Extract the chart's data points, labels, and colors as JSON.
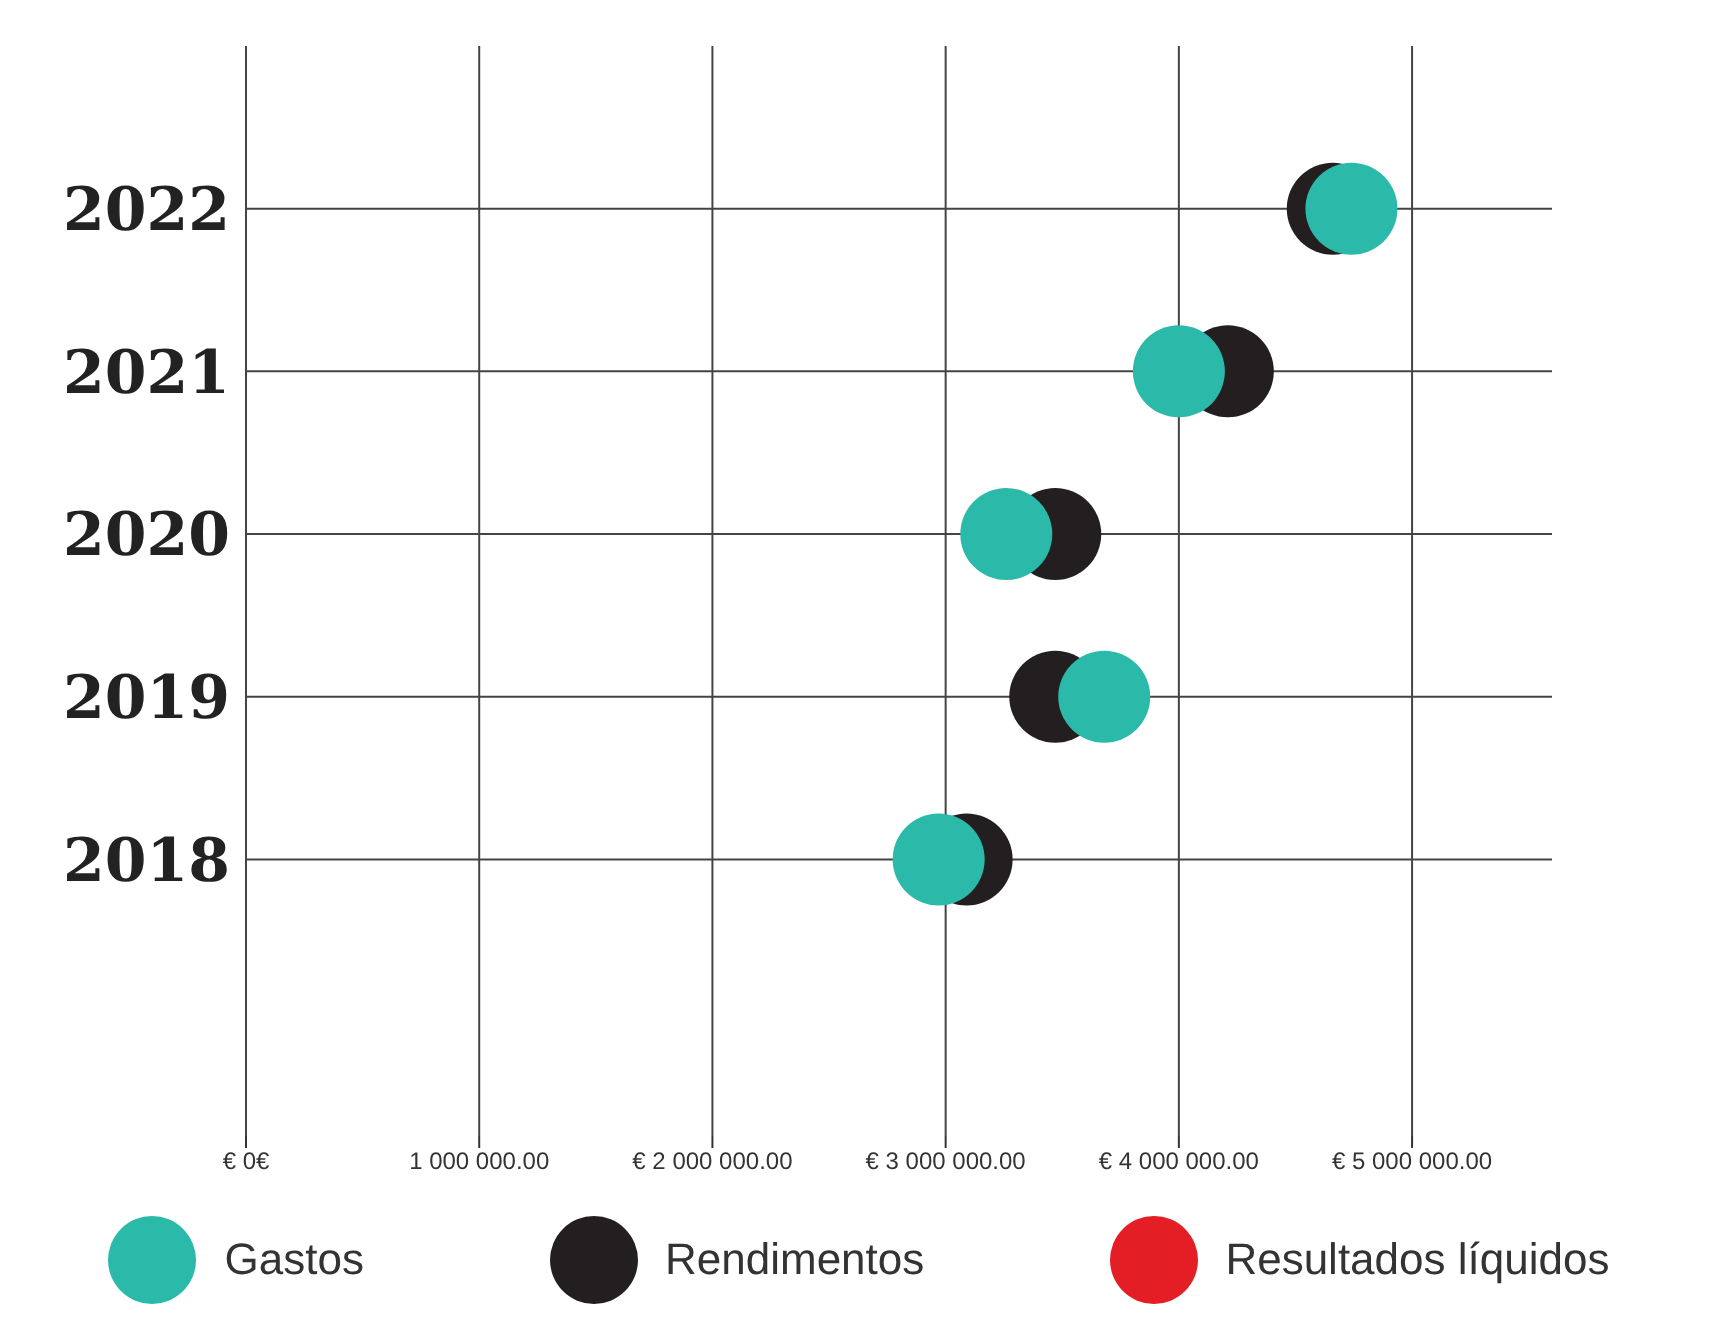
{
  "chart_data": {
    "type": "scatter",
    "orientation": "horizontal",
    "categories": [
      "2022",
      "2021",
      "2020",
      "2019",
      "2018"
    ],
    "series": [
      {
        "name": "Gastos",
        "color": "#2bb9a9",
        "values": [
          4740000,
          4000000,
          3260000,
          3680000,
          2970000
        ]
      },
      {
        "name": "Rendimentos",
        "color": "#231f20",
        "values": [
          4660000,
          4210000,
          3470000,
          3470000,
          3090000
        ]
      },
      {
        "name": "Resultados líquidos",
        "color": "#e31e24",
        "values": [
          null,
          null,
          null,
          null,
          null
        ]
      }
    ],
    "xlim": [
      0,
      5600000
    ],
    "xticks": [
      {
        "value": 0,
        "label": "€ 0€"
      },
      {
        "value": 1000000,
        "label": "1 000 000.00"
      },
      {
        "value": 2000000,
        "label": "€ 2 000 000.00"
      },
      {
        "value": 3000000,
        "label": "€ 3 000 000.00"
      },
      {
        "value": 4000000,
        "label": "€ 4 000 000.00"
      },
      {
        "value": 5000000,
        "label": "€ 5 000 000.00"
      }
    ],
    "grid": true,
    "legend": "bottom",
    "marker": "circle"
  }
}
